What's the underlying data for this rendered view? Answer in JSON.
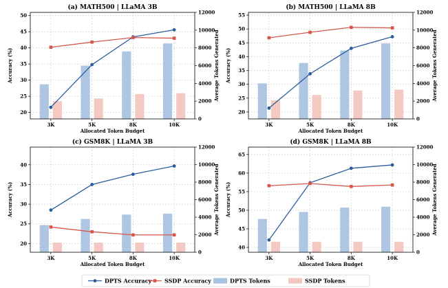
{
  "colors": {
    "dpts": "#2b5d9b",
    "ssdp": "#d6564c",
    "dpts_bar": "#aac3e0",
    "ssdp_bar": "#f4c6c0",
    "grid": "#c8c8c8"
  },
  "chart_data": [
    {
      "type": "bar+line",
      "title": "(a) MATH500 | LLaMA 3B",
      "xlabel": "Allocated Token Budget",
      "ylabel": "Accuracy (%)",
      "y2label": "Average Tokens Generated",
      "categories": [
        "3K",
        "5K",
        "8K",
        "10K"
      ],
      "ylim": [
        18,
        51
      ],
      "yticks": [
        20,
        25,
        30,
        35,
        40,
        45,
        50
      ],
      "y2lim": [
        0,
        12000
      ],
      "y2ticks": [
        0,
        2000,
        4000,
        6000,
        8000,
        10000,
        12000
      ],
      "grid": true,
      "series": [
        {
          "name": "DPTS Accuracy",
          "kind": "line",
          "axis": "left",
          "values": [
            21.6,
            34.8,
            43.4,
            45.6
          ]
        },
        {
          "name": "SSDP Accuracy",
          "kind": "line",
          "axis": "left",
          "values": [
            40.2,
            41.8,
            43.2,
            43.0
          ]
        },
        {
          "name": "DPTS Tokens",
          "kind": "bar",
          "axis": "right",
          "values": [
            3900,
            6000,
            7600,
            8500
          ]
        },
        {
          "name": "SSDP Tokens",
          "kind": "bar",
          "axis": "right",
          "values": [
            2000,
            2300,
            2800,
            2900
          ]
        }
      ]
    },
    {
      "type": "bar+line",
      "title": "(b) MATH500 | LLaMA 8B",
      "xlabel": "Allocated Token Budget",
      "ylabel": "Accuracy (%)",
      "y2label": "Average Tokens Generated",
      "categories": [
        "3K",
        "5K",
        "8K",
        "10K"
      ],
      "ylim": [
        17.5,
        56
      ],
      "yticks": [
        20,
        25,
        30,
        35,
        40,
        45,
        50,
        55
      ],
      "y2lim": [
        0,
        12000
      ],
      "y2ticks": [
        0,
        2000,
        4000,
        6000,
        8000,
        10000,
        12000
      ],
      "grid": true,
      "series": [
        {
          "name": "DPTS Accuracy",
          "kind": "line",
          "axis": "left",
          "values": [
            21.4,
            33.8,
            43.0,
            47.2
          ]
        },
        {
          "name": "SSDP Accuracy",
          "kind": "line",
          "axis": "left",
          "values": [
            46.8,
            48.8,
            50.6,
            50.4
          ]
        },
        {
          "name": "DPTS Tokens",
          "kind": "bar",
          "axis": "right",
          "values": [
            4000,
            6300,
            7700,
            8500
          ]
        },
        {
          "name": "SSDP Tokens",
          "kind": "bar",
          "axis": "right",
          "values": [
            2100,
            2700,
            3200,
            3300
          ]
        }
      ]
    },
    {
      "type": "bar+line",
      "title": "(c) GSM8K | LLaMA 3B",
      "xlabel": "Allocated Token Budget",
      "ylabel": "Accuracy (%)",
      "y2label": "Average Tokens Generated",
      "categories": [
        "3K",
        "5K",
        "8K",
        "10K"
      ],
      "ylim": [
        17.8,
        44.5
      ],
      "yticks": [
        20,
        25,
        30,
        35,
        40
      ],
      "y2lim": [
        0,
        12000
      ],
      "y2ticks": [
        0,
        2000,
        4000,
        6000,
        8000,
        10000,
        12000
      ],
      "grid": true,
      "series": [
        {
          "name": "DPTS Accuracy",
          "kind": "line",
          "axis": "left",
          "values": [
            28.5,
            35.0,
            37.6,
            39.7
          ]
        },
        {
          "name": "SSDP Accuracy",
          "kind": "line",
          "axis": "left",
          "values": [
            24.2,
            23.0,
            22.2,
            22.2
          ]
        },
        {
          "name": "DPTS Tokens",
          "kind": "bar",
          "axis": "right",
          "values": [
            3100,
            3800,
            4300,
            4400
          ]
        },
        {
          "name": "SSDP Tokens",
          "kind": "bar",
          "axis": "right",
          "values": [
            1100,
            1100,
            1100,
            1100
          ]
        }
      ]
    },
    {
      "type": "bar+line",
      "title": "(d) GSM8K | LLaMA 8B",
      "xlabel": "Allocated Token Budget",
      "ylabel": "Accuracy (%)",
      "y2label": "Average Tokens Generated",
      "categories": [
        "3K",
        "5K",
        "8K",
        "10K"
      ],
      "ylim": [
        38.7,
        67
      ],
      "yticks": [
        40,
        45,
        50,
        55,
        60,
        65
      ],
      "y2lim": [
        0,
        12000
      ],
      "y2ticks": [
        0,
        2000,
        4000,
        6000,
        8000,
        10000,
        12000
      ],
      "grid": true,
      "series": [
        {
          "name": "DPTS Accuracy",
          "kind": "line",
          "axis": "left",
          "values": [
            42.0,
            57.4,
            61.3,
            62.2
          ]
        },
        {
          "name": "SSDP Accuracy",
          "kind": "line",
          "axis": "left",
          "values": [
            56.6,
            57.2,
            56.4,
            56.8
          ]
        },
        {
          "name": "DPTS Tokens",
          "kind": "bar",
          "axis": "right",
          "values": [
            3800,
            4600,
            5100,
            5200
          ]
        },
        {
          "name": "SSDP Tokens",
          "kind": "bar",
          "axis": "right",
          "values": [
            1200,
            1200,
            1200,
            1200
          ]
        }
      ]
    }
  ],
  "legend": [
    {
      "label": "DPTS Accuracy",
      "kind": "line",
      "marker": "circle",
      "color": "#2b5d9b"
    },
    {
      "label": "SSDP Accuracy",
      "kind": "line",
      "marker": "square",
      "color": "#d6564c"
    },
    {
      "label": "DPTS Tokens",
      "kind": "bar",
      "color": "#aac3e0"
    },
    {
      "label": "SSDP Tokens",
      "kind": "bar",
      "color": "#f4c6c0"
    }
  ]
}
